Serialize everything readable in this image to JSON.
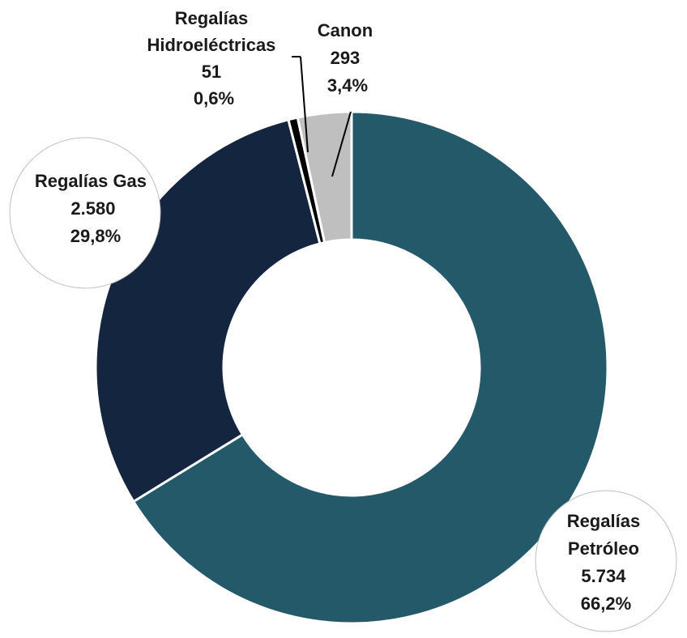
{
  "chart_data": {
    "type": "pie",
    "title": "",
    "categories": [
      "Regalías Petróleo",
      "Regalías Gas",
      "Regalías Hidroeléctricas",
      "Canon"
    ],
    "values": [
      5734,
      2580,
      51,
      293
    ],
    "value_labels": [
      "5.734",
      "2.580",
      "51",
      "293"
    ],
    "percent_labels": [
      "66,2%",
      "29,8%",
      "0,6%",
      "3,4%"
    ],
    "label_lines": [
      [
        "Regalías",
        "Petróleo"
      ],
      [
        "Regalías Gas"
      ],
      [
        "Regalías",
        "Hidroeléctricas"
      ],
      [
        "Canon"
      ]
    ],
    "colors": [
      "#235968",
      "#13253F",
      "#000000",
      "#BFBFBF"
    ],
    "donut": true,
    "legend": "none"
  }
}
